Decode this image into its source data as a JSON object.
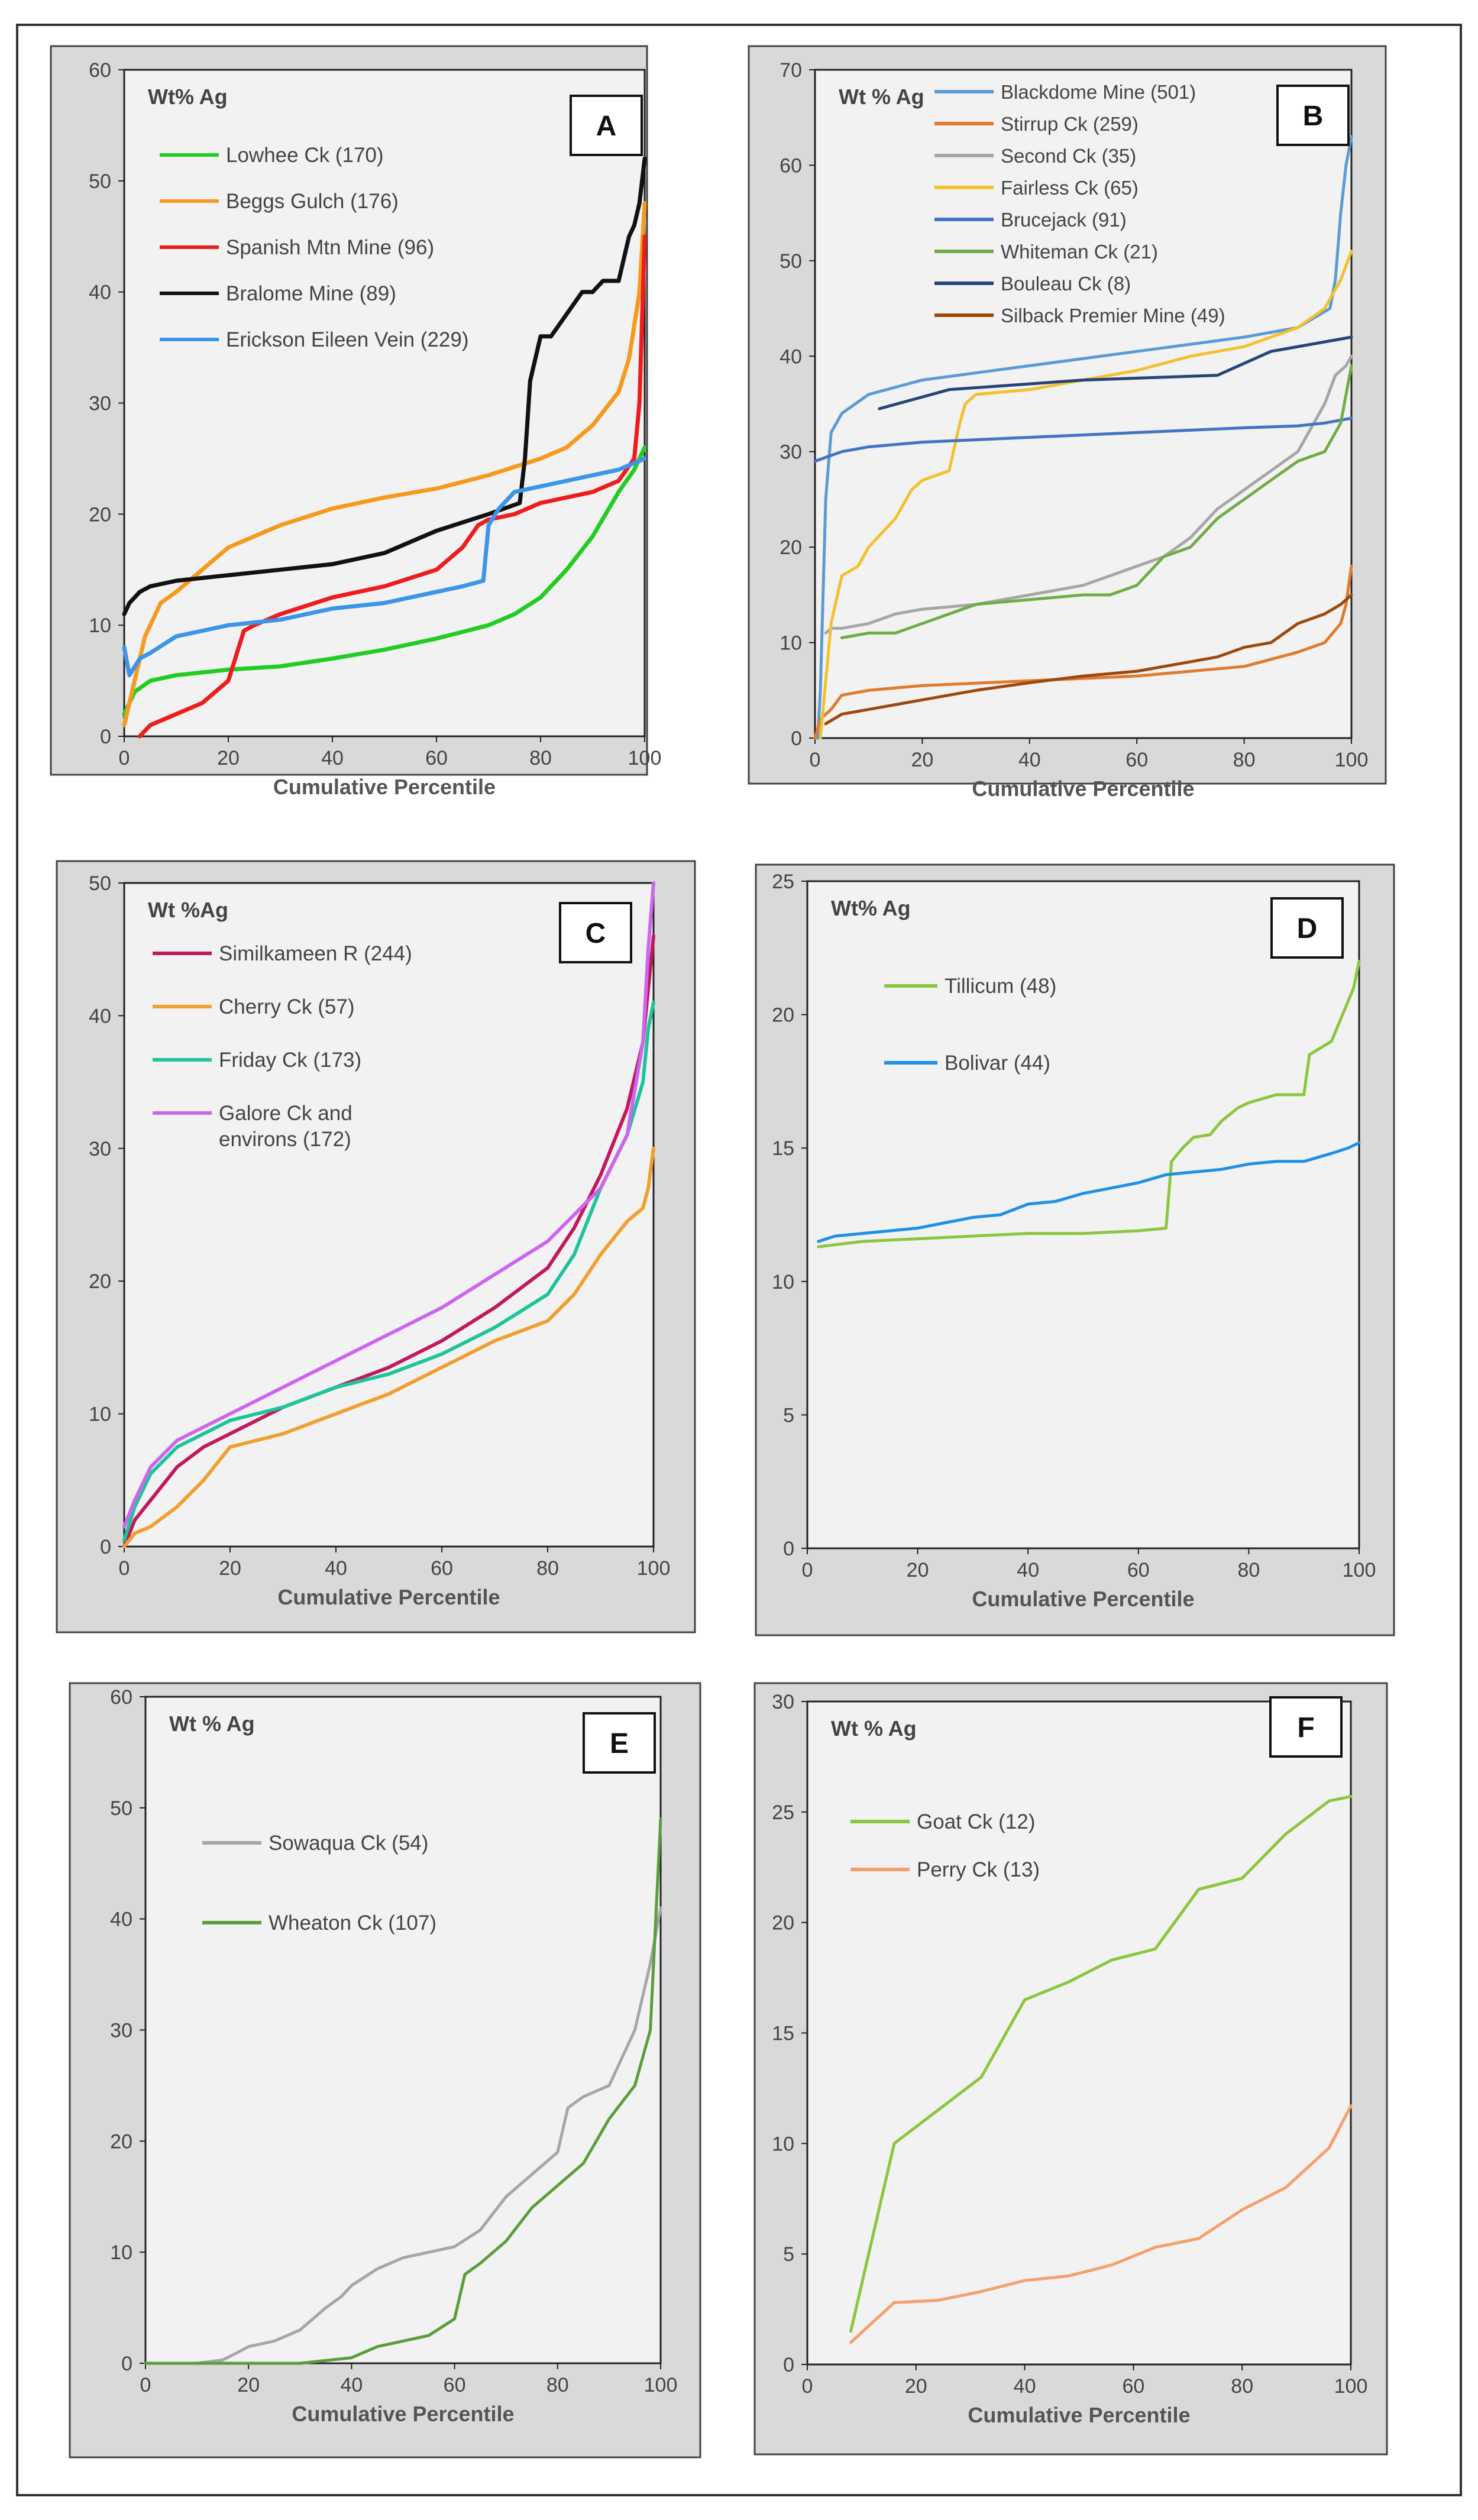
{
  "chart_data": [
    {
      "id": "A",
      "type": "line",
      "panel_label": "A",
      "ylabel": "Wt% Ag",
      "xlabel": "Cumulative Percentile",
      "xlim": [
        0,
        100
      ],
      "ylim": [
        0,
        60
      ],
      "xticks": [
        0,
        20,
        40,
        60,
        80,
        100
      ],
      "yticks": [
        0,
        10,
        20,
        30,
        40,
        50,
        60
      ],
      "series": [
        {
          "name": "Lowhee Ck (170)",
          "color": "#22cc22",
          "x": [
            0,
            2,
            5,
            10,
            20,
            30,
            40,
            50,
            60,
            70,
            75,
            80,
            85,
            90,
            95,
            98,
            100
          ],
          "y": [
            2,
            4,
            5,
            5.5,
            6,
            6.3,
            7,
            7.8,
            8.8,
            10,
            11,
            12.5,
            15,
            18,
            22,
            24,
            26
          ]
        },
        {
          "name": "Beggs Gulch (176)",
          "color": "#f59a1e",
          "x": [
            0,
            2,
            4,
            7,
            10,
            15,
            20,
            30,
            40,
            50,
            60,
            70,
            80,
            85,
            90,
            95,
            97,
            99,
            100
          ],
          "y": [
            1,
            5,
            9,
            12,
            13,
            15,
            17,
            19,
            20.5,
            21.5,
            22.3,
            23.5,
            25,
            26,
            28,
            31,
            34,
            40,
            48
          ]
        },
        {
          "name": "Spanish Mtn Mine (96)",
          "color": "#ee1c1c",
          "x": [
            3,
            5,
            10,
            15,
            20,
            22,
            23,
            25,
            30,
            40,
            50,
            60,
            65,
            68,
            70,
            75,
            80,
            90,
            95,
            98,
            99,
            100
          ],
          "y": [
            0,
            1,
            2,
            3,
            5,
            8,
            9.5,
            10,
            11,
            12.5,
            13.5,
            15,
            17,
            19,
            19.5,
            20,
            21,
            22,
            23,
            25,
            30,
            45
          ]
        },
        {
          "name": "Bralome Mine (89)",
          "color": "#111111",
          "x": [
            0,
            1,
            3,
            5,
            10,
            20,
            30,
            40,
            50,
            60,
            70,
            76,
            77,
            78,
            80,
            82,
            85,
            88,
            90,
            92,
            95,
            96,
            97,
            98,
            99,
            100
          ],
          "y": [
            11,
            12,
            13,
            13.5,
            14,
            14.5,
            15,
            15.5,
            16.5,
            18.5,
            20,
            21,
            25,
            32,
            36,
            36,
            38,
            40,
            40,
            41,
            41,
            43,
            45,
            46,
            48,
            52
          ]
        },
        {
          "name": "Erickson Eileen Vein (229)",
          "color": "#3b95e8",
          "x": [
            0,
            1,
            3,
            5,
            10,
            20,
            30,
            40,
            50,
            60,
            65,
            69,
            70,
            72,
            75,
            80,
            90,
            95,
            100
          ],
          "y": [
            8,
            5.5,
            7,
            7.5,
            9,
            10,
            10.5,
            11.5,
            12,
            13,
            13.5,
            14,
            19,
            20.5,
            22,
            22.5,
            23.5,
            24,
            25
          ]
        }
      ]
    },
    {
      "id": "B",
      "type": "line",
      "panel_label": "B",
      "ylabel": "Wt % Ag",
      "xlabel": "Cumulative Percentile",
      "xlim": [
        0,
        100
      ],
      "ylim": [
        0,
        70
      ],
      "xticks": [
        0,
        20,
        40,
        60,
        80,
        100
      ],
      "yticks": [
        0,
        10,
        20,
        30,
        40,
        50,
        60,
        70
      ],
      "series": [
        {
          "name": "Blackdome Mine  (501)",
          "color": "#5b9bd5",
          "x": [
            0.5,
            1,
            2,
            3,
            5,
            10,
            20,
            40,
            60,
            80,
            90,
            96,
            97,
            98,
            99,
            100
          ],
          "y": [
            0,
            5,
            25,
            32,
            34,
            36,
            37.5,
            39,
            40.5,
            42,
            43,
            45,
            48,
            55,
            60,
            63
          ]
        },
        {
          "name": "Stirrup Ck (259)",
          "color": "#e07a30",
          "x": [
            0,
            1,
            3,
            5,
            10,
            20,
            40,
            60,
            70,
            80,
            90,
            95,
            98,
            99,
            100
          ],
          "y": [
            0,
            2,
            3,
            4.5,
            5,
            5.5,
            6,
            6.5,
            7,
            7.5,
            9,
            10,
            12,
            14,
            18
          ]
        },
        {
          "name": "Second Ck (35)",
          "color": "#a6a6a6",
          "x": [
            2,
            3,
            5,
            10,
            15,
            20,
            30,
            40,
            50,
            55,
            60,
            65,
            70,
            75,
            80,
            85,
            90,
            95,
            97,
            99,
            100
          ],
          "y": [
            11,
            11.5,
            11.5,
            12,
            13,
            13.5,
            14,
            15,
            16,
            17,
            18,
            19,
            21,
            24,
            26,
            28,
            30,
            35,
            38,
            39,
            40
          ]
        },
        {
          "name": "Fairless Ck (65)",
          "color": "#f2c12e",
          "x": [
            1,
            3,
            5,
            8,
            10,
            15,
            18,
            20,
            25,
            27,
            28,
            30,
            40,
            50,
            60,
            70,
            80,
            90,
            95,
            98,
            100
          ],
          "y": [
            0,
            12,
            17,
            18,
            20,
            23,
            26,
            27,
            28,
            33,
            35,
            36,
            36.5,
            37.5,
            38.5,
            40,
            41,
            43,
            45,
            48,
            51
          ]
        },
        {
          "name": "Brucejack (91)",
          "color": "#4472c4",
          "x": [
            0,
            5,
            10,
            20,
            40,
            60,
            80,
            90,
            95,
            100
          ],
          "y": [
            29,
            30,
            30.5,
            31,
            31.5,
            32,
            32.5,
            32.7,
            33,
            33.5
          ]
        },
        {
          "name": "Whiteman Ck (21)",
          "color": "#70ad47",
          "x": [
            5,
            10,
            15,
            20,
            25,
            30,
            40,
            50,
            55,
            60,
            65,
            70,
            75,
            80,
            85,
            90,
            95,
            98,
            100
          ],
          "y": [
            10.5,
            11,
            11,
            12,
            13,
            14,
            14.5,
            15,
            15,
            16,
            19,
            20,
            23,
            25,
            27,
            29,
            30,
            33,
            39
          ]
        },
        {
          "name": "Bouleau Ck (8)",
          "color": "#264478",
          "x": [
            12,
            25,
            50,
            75,
            85,
            100
          ],
          "y": [
            34.5,
            36.5,
            37.5,
            38,
            40.5,
            42
          ]
        },
        {
          "name": "Silback Premier Mine (49)",
          "color": "#9e480e",
          "x": [
            2,
            5,
            10,
            20,
            30,
            40,
            50,
            60,
            70,
            75,
            80,
            85,
            90,
            95,
            98,
            100
          ],
          "y": [
            1.5,
            2.5,
            3,
            4,
            5,
            5.8,
            6.5,
            7,
            8,
            8.5,
            9.5,
            10,
            12,
            13,
            14,
            15
          ]
        }
      ]
    },
    {
      "id": "C",
      "type": "line",
      "panel_label": "C",
      "ylabel": "Wt %Ag",
      "xlabel": "Cumulative Percentile",
      "xlim": [
        0,
        100
      ],
      "ylim": [
        0,
        50
      ],
      "xticks": [
        0,
        20,
        40,
        60,
        80,
        100
      ],
      "yticks": [
        0,
        10,
        20,
        30,
        40,
        50
      ],
      "series": [
        {
          "name": "Similkameen R (244)",
          "color": "#c0195e",
          "x": [
            0,
            2,
            5,
            10,
            15,
            20,
            25,
            30,
            40,
            50,
            60,
            70,
            80,
            85,
            90,
            95,
            98,
            99,
            100
          ],
          "y": [
            0,
            2,
            3.5,
            6,
            7.5,
            8.5,
            9.5,
            10.5,
            12,
            13.5,
            15.5,
            18,
            21,
            24,
            28,
            33,
            38,
            42,
            46
          ]
        },
        {
          "name": "Cherry Ck (57)",
          "color": "#f0a030",
          "x": [
            0,
            2,
            5,
            10,
            15,
            20,
            25,
            30,
            40,
            50,
            60,
            70,
            80,
            85,
            90,
            95,
            98,
            99,
            100
          ],
          "y": [
            0,
            1,
            1.5,
            3,
            5,
            7.5,
            8,
            8.5,
            10,
            11.5,
            13.5,
            15.5,
            17,
            19,
            22,
            24.5,
            25.5,
            27,
            30
          ]
        },
        {
          "name": "Friday Ck (173)",
          "color": "#1ec49a",
          "x": [
            0,
            2,
            5,
            10,
            15,
            20,
            25,
            30,
            40,
            50,
            60,
            70,
            80,
            85,
            90,
            95,
            98,
            99,
            100
          ],
          "y": [
            0.5,
            3,
            5.5,
            7.5,
            8.5,
            9.5,
            10,
            10.5,
            12,
            13,
            14.5,
            16.5,
            19,
            22,
            27,
            31,
            35,
            39,
            41
          ]
        },
        {
          "name": "Galore Ck and environs (172)",
          "color": "#cc66ee",
          "x": [
            0,
            2,
            5,
            10,
            15,
            20,
            25,
            30,
            40,
            50,
            60,
            70,
            80,
            85,
            90,
            95,
            98,
            99,
            100
          ],
          "y": [
            1.5,
            3.5,
            6,
            8,
            9,
            10,
            11,
            12,
            14,
            16,
            18,
            20.5,
            23,
            25,
            27,
            31,
            38,
            45,
            50
          ],
          "legend_lines": [
            "Galore Ck and",
            "environs (172)"
          ]
        }
      ]
    },
    {
      "id": "D",
      "type": "line",
      "panel_label": "D",
      "ylabel": "Wt% Ag",
      "xlabel": "Cumulative Percentile",
      "xlim": [
        0,
        100
      ],
      "ylim": [
        0,
        25
      ],
      "xticks": [
        0,
        20,
        40,
        60,
        80,
        100
      ],
      "yticks": [
        0,
        5,
        10,
        15,
        20,
        25
      ],
      "series": [
        {
          "name": "Tillicum (48)",
          "color": "#8cc63f",
          "x": [
            2,
            10,
            20,
            30,
            40,
            50,
            60,
            65,
            66,
            68,
            70,
            73,
            75,
            78,
            80,
            85,
            90,
            91,
            95,
            97,
            99,
            100
          ],
          "y": [
            11.3,
            11.5,
            11.6,
            11.7,
            11.8,
            11.8,
            11.9,
            12,
            14.5,
            15,
            15.4,
            15.5,
            16,
            16.5,
            16.7,
            17,
            17,
            18.5,
            19,
            20,
            21,
            22
          ]
        },
        {
          "name": "Bolivar (44)",
          "color": "#1e90e6",
          "x": [
            2,
            5,
            10,
            15,
            20,
            25,
            30,
            35,
            40,
            45,
            50,
            55,
            60,
            65,
            70,
            75,
            80,
            85,
            90,
            95,
            98,
            100
          ],
          "y": [
            11.5,
            11.7,
            11.8,
            11.9,
            12,
            12.2,
            12.4,
            12.5,
            12.9,
            13,
            13.3,
            13.5,
            13.7,
            14,
            14.1,
            14.2,
            14.4,
            14.5,
            14.5,
            14.8,
            15,
            15.2
          ]
        }
      ]
    },
    {
      "id": "E",
      "type": "line",
      "panel_label": "E",
      "ylabel": "Wt % Ag",
      "xlabel": "Cumulative Percentile",
      "xlim": [
        0,
        100
      ],
      "ylim": [
        0,
        60
      ],
      "xticks": [
        0,
        20,
        40,
        60,
        80,
        100
      ],
      "yticks": [
        0,
        10,
        20,
        30,
        40,
        50,
        60
      ],
      "series": [
        {
          "name": "Sowaqua Ck (54)",
          "color": "#a6a6a6",
          "x": [
            0,
            10,
            15,
            18,
            20,
            25,
            30,
            35,
            38,
            40,
            45,
            50,
            55,
            60,
            65,
            70,
            75,
            80,
            82,
            85,
            90,
            95,
            98,
            100
          ],
          "y": [
            0,
            0,
            0.3,
            1,
            1.5,
            2,
            3,
            5,
            6,
            7,
            8.5,
            9.5,
            10,
            10.5,
            12,
            15,
            17,
            19,
            23,
            24,
            25,
            30,
            36,
            41
          ]
        },
        {
          "name": "Wheaton Ck (107)",
          "color": "#5a9e3c",
          "x": [
            0,
            20,
            30,
            40,
            45,
            50,
            55,
            60,
            62,
            65,
            70,
            75,
            80,
            85,
            90,
            95,
            98,
            100
          ],
          "y": [
            0,
            0,
            0,
            0.5,
            1.5,
            2,
            2.5,
            4,
            8,
            9,
            11,
            14,
            16,
            18,
            22,
            25,
            30,
            49
          ]
        }
      ]
    },
    {
      "id": "F",
      "type": "line",
      "panel_label": "F",
      "ylabel": "Wt % Ag",
      "xlabel": "Cumulative Percentile",
      "xlim": [
        0,
        100
      ],
      "ylim": [
        0,
        30
      ],
      "xticks": [
        0,
        20,
        40,
        60,
        80,
        100
      ],
      "yticks": [
        0,
        5,
        10,
        15,
        20,
        25,
        30
      ],
      "series": [
        {
          "name": "Goat Ck (12)",
          "color": "#8cc63f",
          "x": [
            8,
            16,
            24,
            32,
            40,
            48,
            56,
            64,
            72,
            80,
            88,
            96,
            100
          ],
          "y": [
            1.5,
            10,
            11.5,
            13,
            16.5,
            17.3,
            18.3,
            18.8,
            21.5,
            22,
            24,
            25.5,
            25.7
          ]
        },
        {
          "name": "Perry Ck (13)",
          "color": "#f4a06e",
          "x": [
            8,
            16,
            24,
            32,
            40,
            48,
            56,
            64,
            72,
            80,
            88,
            96,
            100
          ],
          "y": [
            1,
            2.8,
            2.9,
            3.3,
            3.8,
            4,
            4.5,
            5.3,
            5.7,
            7,
            8,
            9.8,
            11.7
          ]
        }
      ]
    }
  ]
}
